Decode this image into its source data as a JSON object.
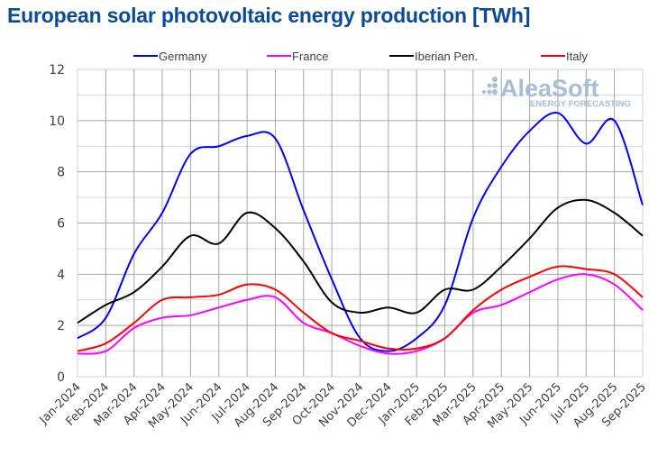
{
  "chart_data": {
    "type": "line",
    "title": "European solar photovoltaic energy production [TWh]",
    "xlabel": "",
    "ylabel": "",
    "ylim": [
      0,
      12
    ],
    "yticks": [
      0,
      2,
      4,
      6,
      8,
      10,
      12
    ],
    "grid": true,
    "legend_position": "top",
    "categories": [
      "Jan-2024",
      "Feb-2024",
      "Mar-2024",
      "Apr-2024",
      "May-2024",
      "Jun-2024",
      "Jul-2024",
      "Aug-2024",
      "Sep-2024",
      "Oct-2024",
      "Nov-2024",
      "Dec-2024",
      "Jan-2025",
      "Feb-2025",
      "Mar-2025",
      "Apr-2025",
      "May-2025",
      "Jun-2025",
      "Jul-2025",
      "Aug-2025",
      "Sep-2025"
    ],
    "series": [
      {
        "name": "Germany",
        "color": "#0000ff",
        "values": [
          1.5,
          2.3,
          4.8,
          6.4,
          8.7,
          9.0,
          9.4,
          9.3,
          6.5,
          3.8,
          1.5,
          1.0,
          1.5,
          2.8,
          6.2,
          8.2,
          9.6,
          10.3,
          9.1,
          10.0,
          6.7
        ]
      },
      {
        "name": "France",
        "color": "#ff00ff",
        "values": [
          0.9,
          1.0,
          1.9,
          2.3,
          2.4,
          2.7,
          3.0,
          3.1,
          2.1,
          1.7,
          1.2,
          0.9,
          1.0,
          1.5,
          2.5,
          2.8,
          3.3,
          3.8,
          4.0,
          3.6,
          2.6
        ]
      },
      {
        "name": "Iberian Pen.",
        "color": "#000000",
        "values": [
          2.1,
          2.8,
          3.3,
          4.3,
          5.5,
          5.2,
          6.4,
          5.8,
          4.5,
          2.9,
          2.5,
          2.7,
          2.5,
          3.4,
          3.4,
          4.3,
          5.4,
          6.6,
          6.9,
          6.4,
          5.5
        ]
      },
      {
        "name": "Italy",
        "color": "#ff0000",
        "values": [
          1.0,
          1.3,
          2.1,
          3.0,
          3.1,
          3.2,
          3.6,
          3.4,
          2.5,
          1.7,
          1.4,
          1.1,
          1.1,
          1.5,
          2.6,
          3.4,
          3.9,
          4.3,
          4.2,
          4.0,
          3.1
        ]
      }
    ]
  },
  "watermark": {
    "brand": "AleaSoft",
    "tagline": "ENERGY FORECASTING"
  },
  "colors": {
    "title": "#0a4a96",
    "grid_major": "#a6a6a6",
    "grid_minor": "#d9d9d9",
    "watermark": "#a8bdd8"
  }
}
